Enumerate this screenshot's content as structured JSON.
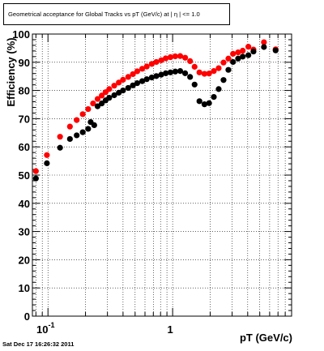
{
  "title": "Geometrical acceptance for Global Tracks vs pT (GeV/c) at |  η  | <= 1.0",
  "datestamp": "Sat Dec 17 16:26:32 2011",
  "chart_data": {
    "type": "scatter",
    "title": "Geometrical acceptance for Global Tracks vs pT (GeV/c) at |  η  | <= 1.0",
    "xlabel": "pT (GeV/c)",
    "ylabel": "Efficiency (%)",
    "xscale": "log",
    "xlim": [
      0.075,
      9.0
    ],
    "ylim": [
      0,
      100
    ],
    "grid": true,
    "x_tick_labels": [
      {
        "value": 0.1,
        "base": "10",
        "exp": "-1"
      },
      {
        "value": 1,
        "base": "1",
        "exp": ""
      }
    ],
    "y_ticks": [
      0,
      10,
      20,
      30,
      40,
      50,
      60,
      70,
      80,
      90,
      100
    ],
    "series": [
      {
        "color": "#ff0000",
        "points": [
          [
            0.08,
            51.4
          ],
          [
            0.098,
            57.1
          ],
          [
            0.125,
            63.6
          ],
          [
            0.15,
            67.2
          ],
          [
            0.17,
            69.5
          ],
          [
            0.19,
            71.6
          ],
          [
            0.21,
            73.4
          ],
          [
            0.23,
            75.4
          ],
          [
            0.25,
            77.0
          ],
          [
            0.27,
            78.2
          ],
          [
            0.29,
            79.4
          ],
          [
            0.31,
            80.5
          ],
          [
            0.34,
            81.7
          ],
          [
            0.37,
            82.8
          ],
          [
            0.4,
            83.8
          ],
          [
            0.44,
            84.8
          ],
          [
            0.48,
            85.8
          ],
          [
            0.52,
            86.8
          ],
          [
            0.57,
            87.7
          ],
          [
            0.62,
            88.5
          ],
          [
            0.68,
            89.4
          ],
          [
            0.74,
            90.1
          ],
          [
            0.81,
            90.7
          ],
          [
            0.88,
            91.4
          ],
          [
            0.96,
            91.8
          ],
          [
            1.05,
            92.1
          ],
          [
            1.15,
            92.2
          ],
          [
            1.26,
            91.6
          ],
          [
            1.38,
            90.4
          ],
          [
            1.5,
            88.4
          ],
          [
            1.64,
            86.4
          ],
          [
            1.8,
            85.9
          ],
          [
            1.96,
            86.0
          ],
          [
            2.14,
            86.9
          ],
          [
            2.34,
            87.9
          ],
          [
            2.56,
            89.9
          ],
          [
            2.8,
            91.3
          ],
          [
            3.05,
            93.0
          ],
          [
            3.35,
            93.5
          ],
          [
            3.65,
            94.1
          ],
          [
            4.05,
            95.5
          ],
          [
            4.45,
            94.5
          ],
          [
            5.4,
            97.1
          ],
          [
            6.7,
            94.6
          ]
        ]
      },
      {
        "color": "#000000",
        "points": [
          [
            0.08,
            48.8
          ],
          [
            0.098,
            54.2
          ],
          [
            0.125,
            59.7
          ],
          [
            0.15,
            62.8
          ],
          [
            0.17,
            64.1
          ],
          [
            0.19,
            65.2
          ],
          [
            0.21,
            66.4
          ],
          [
            0.22,
            68.8
          ],
          [
            0.235,
            67.7
          ],
          [
            0.25,
            74.4
          ],
          [
            0.27,
            75.4
          ],
          [
            0.29,
            76.5
          ],
          [
            0.31,
            77.4
          ],
          [
            0.34,
            78.3
          ],
          [
            0.37,
            79.2
          ],
          [
            0.4,
            80.0
          ],
          [
            0.44,
            80.9
          ],
          [
            0.48,
            81.8
          ],
          [
            0.52,
            82.6
          ],
          [
            0.57,
            83.3
          ],
          [
            0.62,
            84.0
          ],
          [
            0.68,
            84.6
          ],
          [
            0.74,
            85.1
          ],
          [
            0.81,
            85.6
          ],
          [
            0.88,
            86.1
          ],
          [
            0.96,
            86.4
          ],
          [
            1.05,
            86.7
          ],
          [
            1.15,
            86.9
          ],
          [
            1.26,
            86.1
          ],
          [
            1.38,
            84.8
          ],
          [
            1.5,
            82.1
          ],
          [
            1.64,
            76.2
          ],
          [
            1.8,
            75.1
          ],
          [
            1.96,
            75.5
          ],
          [
            2.14,
            77.7
          ],
          [
            2.34,
            80.5
          ],
          [
            2.56,
            83.7
          ],
          [
            2.8,
            87.3
          ],
          [
            3.05,
            90.1
          ],
          [
            3.35,
            91.3
          ],
          [
            3.65,
            92.0
          ],
          [
            4.05,
            92.5
          ],
          [
            4.45,
            93.8
          ],
          [
            5.4,
            95.4
          ],
          [
            6.7,
            94.2
          ]
        ]
      }
    ]
  }
}
